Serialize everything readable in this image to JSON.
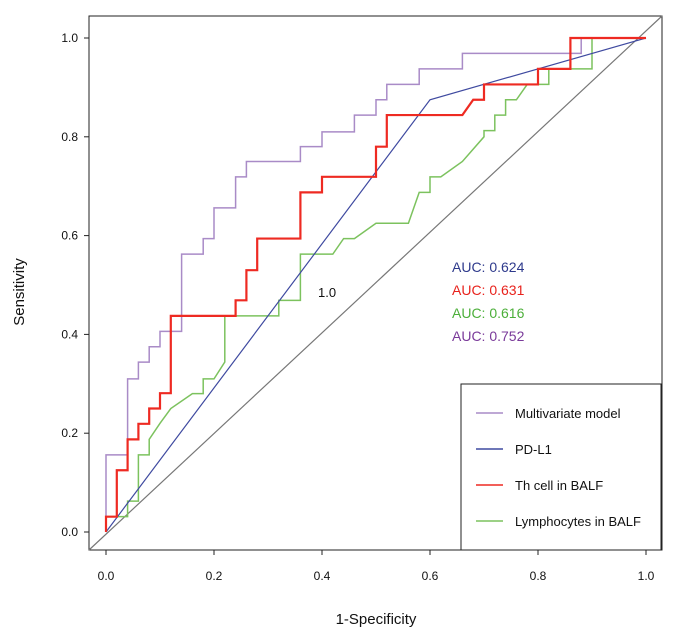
{
  "chart_data": {
    "type": "line",
    "title": "",
    "xlabel": "1-Specificity",
    "ylabel": "Sensitivity",
    "xlim": [
      0,
      1
    ],
    "ylim": [
      0,
      1
    ],
    "xticks": [
      "0.0",
      "0.2",
      "0.4",
      "0.6",
      "0.8",
      "1.0"
    ],
    "yticks": [
      "0.0",
      "0.2",
      "0.4",
      "0.6",
      "0.8",
      "1.0"
    ],
    "grid": false,
    "legend_position": "bottom-right",
    "annotation": "1.0",
    "auc_labels": [
      {
        "text": "AUC: 0.624",
        "color": "#2e3a8c"
      },
      {
        "text": "AUC: 0.631",
        "color": "#e8221c"
      },
      {
        "text": "AUC: 0.616",
        "color": "#4caf3a"
      },
      {
        "text": "AUC: 0.752",
        "color": "#7a3a9a"
      }
    ],
    "series": [
      {
        "name": "Multivariate model",
        "color": "#a98bc7",
        "width": 1.5,
        "points": [
          [
            0,
            0
          ],
          [
            0,
            0.156
          ],
          [
            0.04,
            0.156
          ],
          [
            0.04,
            0.31
          ],
          [
            0.06,
            0.31
          ],
          [
            0.06,
            0.344
          ],
          [
            0.08,
            0.344
          ],
          [
            0.08,
            0.375
          ],
          [
            0.1,
            0.375
          ],
          [
            0.1,
            0.406
          ],
          [
            0.14,
            0.406
          ],
          [
            0.14,
            0.5625
          ],
          [
            0.18,
            0.5625
          ],
          [
            0.18,
            0.594
          ],
          [
            0.2,
            0.594
          ],
          [
            0.2,
            0.656
          ],
          [
            0.24,
            0.656
          ],
          [
            0.24,
            0.719
          ],
          [
            0.26,
            0.719
          ],
          [
            0.26,
            0.75
          ],
          [
            0.36,
            0.75
          ],
          [
            0.36,
            0.78
          ],
          [
            0.4,
            0.78
          ],
          [
            0.4,
            0.81
          ],
          [
            0.46,
            0.81
          ],
          [
            0.46,
            0.844
          ],
          [
            0.5,
            0.844
          ],
          [
            0.5,
            0.875
          ],
          [
            0.52,
            0.875
          ],
          [
            0.52,
            0.906
          ],
          [
            0.58,
            0.906
          ],
          [
            0.58,
            0.9375
          ],
          [
            0.66,
            0.9375
          ],
          [
            0.66,
            0.969
          ],
          [
            0.88,
            0.969
          ],
          [
            0.88,
            1
          ],
          [
            1,
            1
          ]
        ]
      },
      {
        "name": "PD-L1",
        "color": "#3f4aa0",
        "width": 1.2,
        "points": [
          [
            0,
            0
          ],
          [
            0.6,
            0.875
          ],
          [
            1,
            1
          ]
        ]
      },
      {
        "name": "Th cell in BALF",
        "color": "#ee2a22",
        "width": 2.2,
        "points": [
          [
            0,
            0
          ],
          [
            0,
            0.031
          ],
          [
            0.02,
            0.031
          ],
          [
            0.02,
            0.125
          ],
          [
            0.04,
            0.125
          ],
          [
            0.04,
            0.1875
          ],
          [
            0.06,
            0.1875
          ],
          [
            0.06,
            0.219
          ],
          [
            0.08,
            0.219
          ],
          [
            0.08,
            0.25
          ],
          [
            0.1,
            0.25
          ],
          [
            0.1,
            0.281
          ],
          [
            0.12,
            0.281
          ],
          [
            0.12,
            0.4375
          ],
          [
            0.24,
            0.4375
          ],
          [
            0.24,
            0.469
          ],
          [
            0.26,
            0.469
          ],
          [
            0.26,
            0.53
          ],
          [
            0.28,
            0.53
          ],
          [
            0.28,
            0.594
          ],
          [
            0.36,
            0.594
          ],
          [
            0.36,
            0.6875
          ],
          [
            0.4,
            0.6875
          ],
          [
            0.4,
            0.719
          ],
          [
            0.5,
            0.719
          ],
          [
            0.5,
            0.78
          ],
          [
            0.52,
            0.78
          ],
          [
            0.52,
            0.844
          ],
          [
            0.66,
            0.844
          ],
          [
            0.68,
            0.875
          ],
          [
            0.7,
            0.875
          ],
          [
            0.7,
            0.906
          ],
          [
            0.8,
            0.906
          ],
          [
            0.8,
            0.9375
          ],
          [
            0.86,
            0.9375
          ],
          [
            0.86,
            1
          ],
          [
            1,
            1
          ]
        ]
      },
      {
        "name": "Lymphocytes in BALF",
        "color": "#7cc25e",
        "width": 1.5,
        "points": [
          [
            0,
            0
          ],
          [
            0,
            0.031
          ],
          [
            0.04,
            0.031
          ],
          [
            0.04,
            0.0625
          ],
          [
            0.06,
            0.0625
          ],
          [
            0.06,
            0.156
          ],
          [
            0.08,
            0.156
          ],
          [
            0.08,
            0.1875
          ],
          [
            0.1,
            0.22
          ],
          [
            0.12,
            0.25
          ],
          [
            0.16,
            0.28
          ],
          [
            0.18,
            0.28
          ],
          [
            0.18,
            0.31
          ],
          [
            0.2,
            0.31
          ],
          [
            0.22,
            0.344
          ],
          [
            0.22,
            0.4375
          ],
          [
            0.32,
            0.4375
          ],
          [
            0.32,
            0.469
          ],
          [
            0.36,
            0.469
          ],
          [
            0.36,
            0.5625
          ],
          [
            0.42,
            0.5625
          ],
          [
            0.44,
            0.594
          ],
          [
            0.46,
            0.594
          ],
          [
            0.5,
            0.625
          ],
          [
            0.56,
            0.625
          ],
          [
            0.58,
            0.6875
          ],
          [
            0.6,
            0.6875
          ],
          [
            0.6,
            0.719
          ],
          [
            0.62,
            0.719
          ],
          [
            0.66,
            0.75
          ],
          [
            0.7,
            0.8
          ],
          [
            0.7,
            0.8125
          ],
          [
            0.72,
            0.8125
          ],
          [
            0.72,
            0.844
          ],
          [
            0.74,
            0.844
          ],
          [
            0.74,
            0.875
          ],
          [
            0.76,
            0.875
          ],
          [
            0.78,
            0.906
          ],
          [
            0.82,
            0.906
          ],
          [
            0.82,
            0.9375
          ],
          [
            0.9,
            0.9375
          ],
          [
            0.9,
            1
          ],
          [
            1,
            1
          ]
        ]
      }
    ],
    "reference_line": {
      "color": "#777777",
      "points": [
        [
          0,
          0
        ],
        [
          1,
          1
        ]
      ]
    }
  }
}
